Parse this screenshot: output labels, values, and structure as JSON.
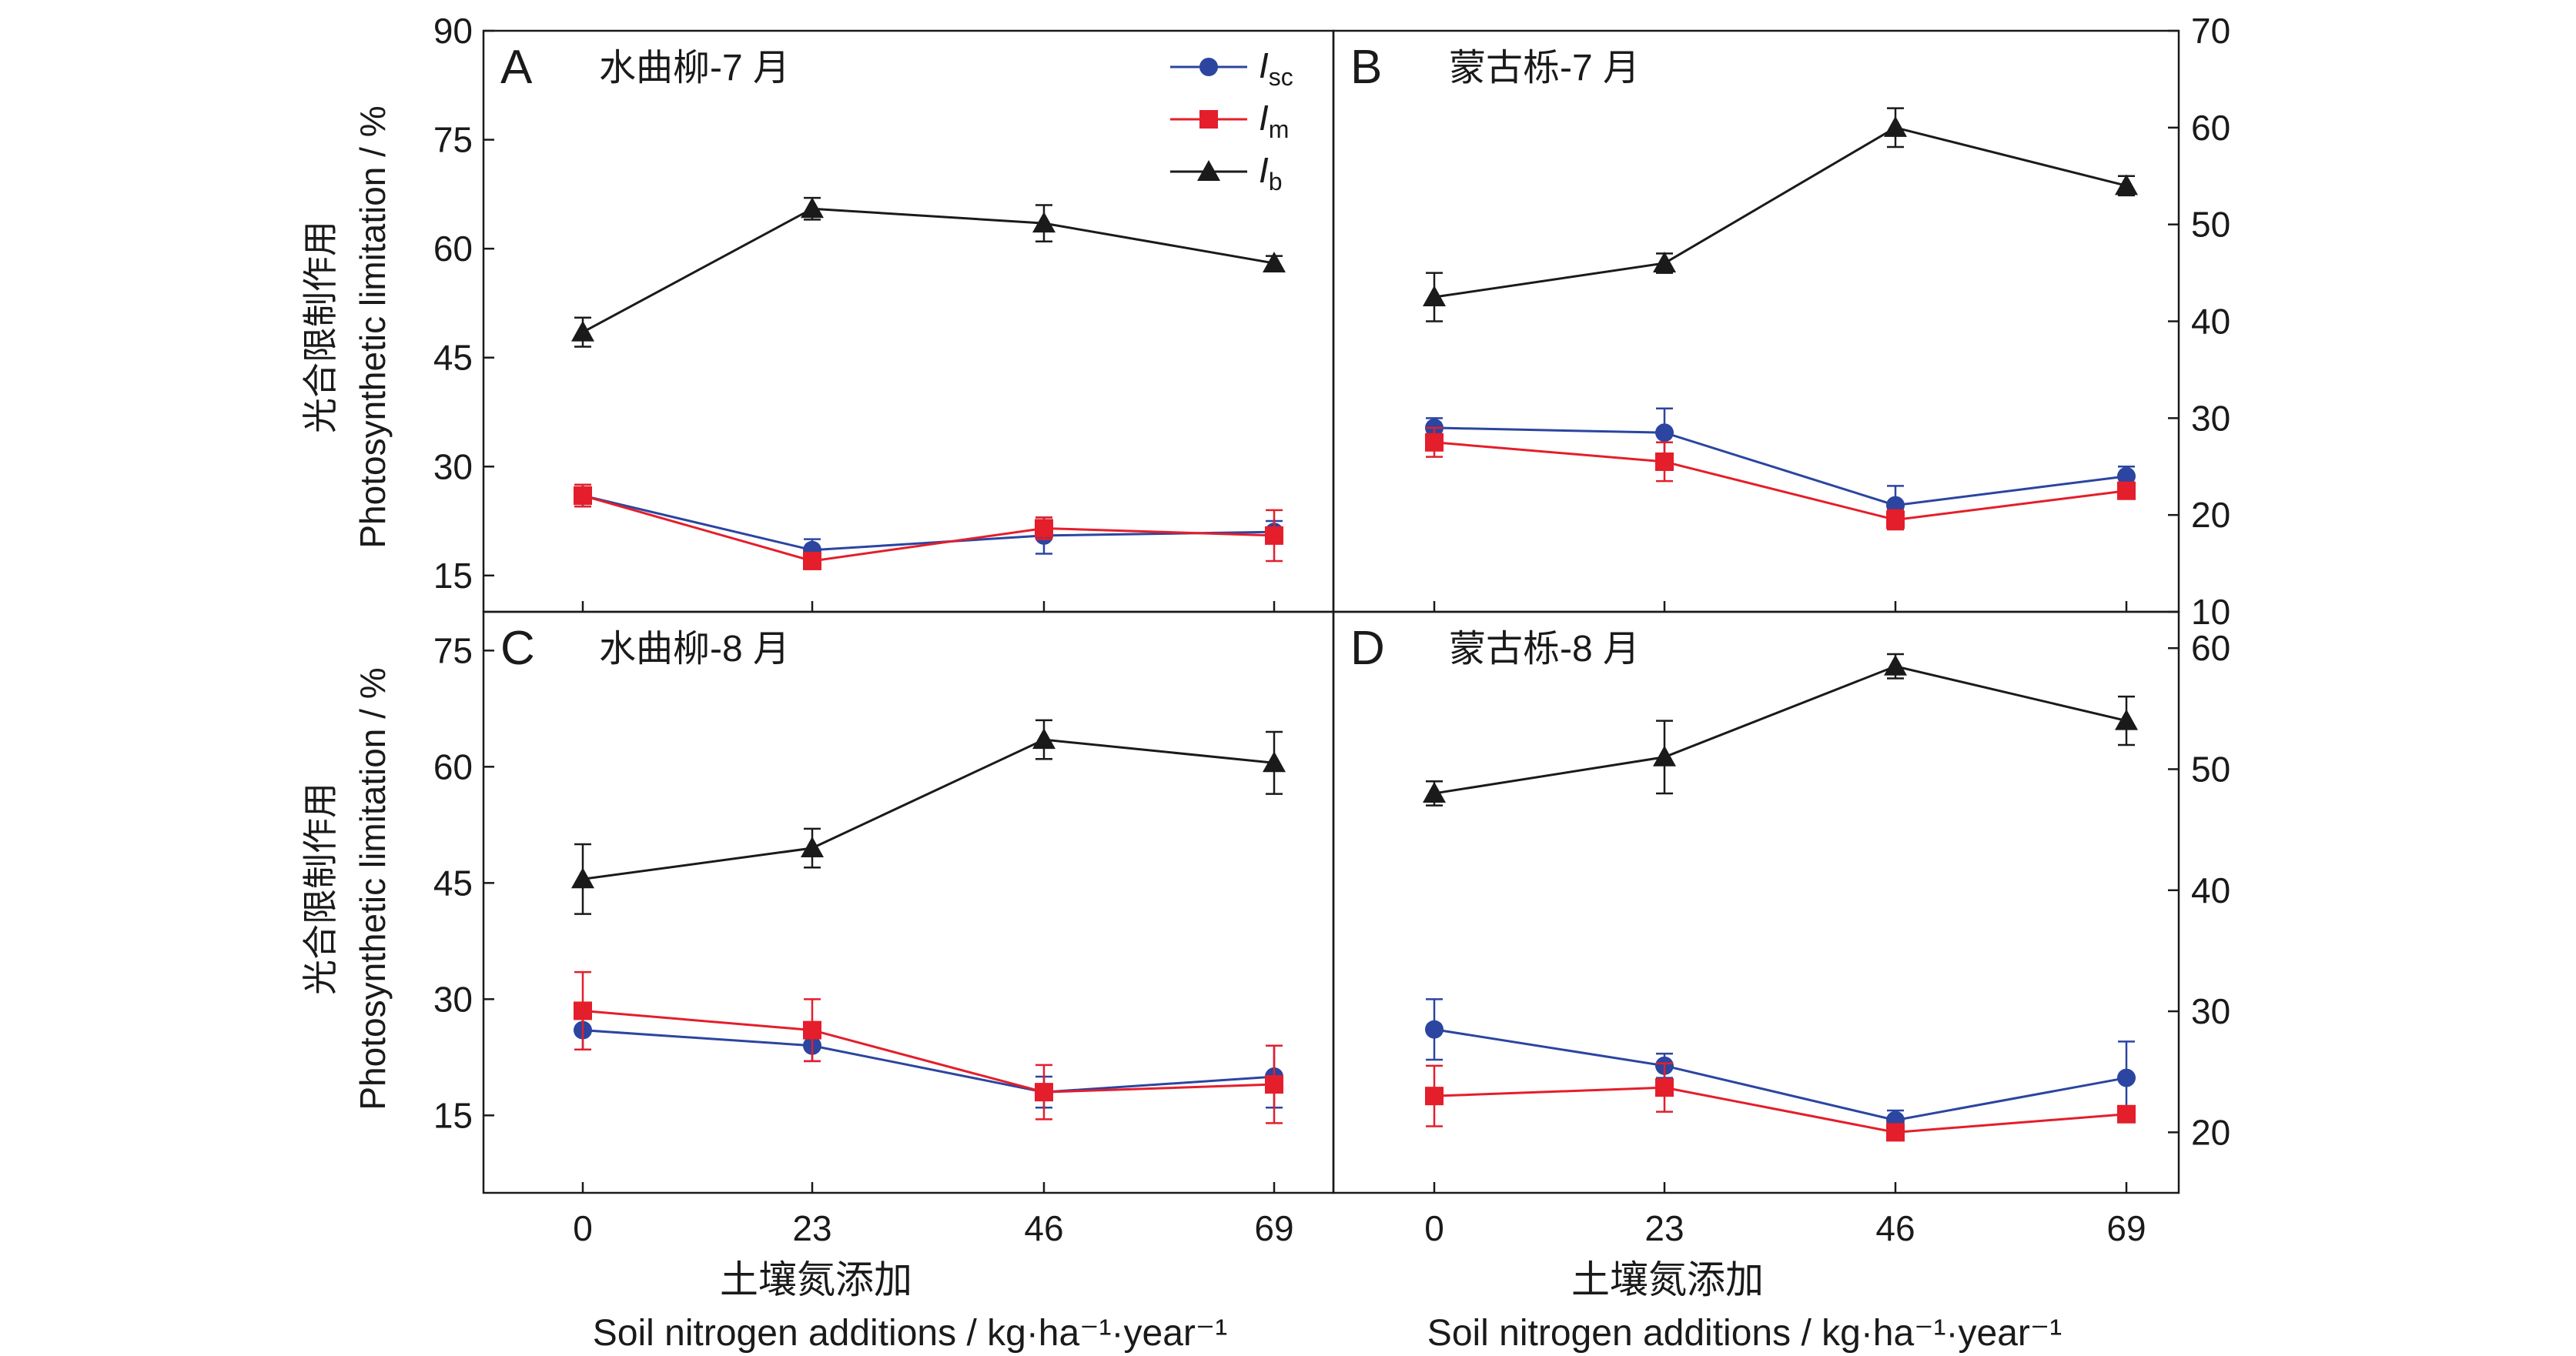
{
  "figure": {
    "ylabel_cn": "光合限制作用",
    "ylabel_en": "Photosynthetic limitation / %",
    "xlabel_cn": "土壤氮添加",
    "xlabel_en": "Soil nitrogen additions / kg·ha⁻¹·year⁻¹",
    "legend": [
      {
        "key": "isc",
        "main": "I",
        "sub": "sc",
        "color": "#2b45a0",
        "marker": "circle"
      },
      {
        "key": "im",
        "main": "I",
        "sub": "m",
        "color": "#e41e2b",
        "marker": "square"
      },
      {
        "key": "ib",
        "main": "I",
        "sub": "b",
        "color": "#1a1a1a",
        "marker": "triangle"
      }
    ],
    "colors": {
      "isc": "#2b45a0",
      "im": "#e41e2b",
      "ib": "#1a1a1a",
      "axis": "#1a1a1a"
    }
  },
  "chart_data": [
    {
      "panel": "A",
      "title": "水曲柳-7 月",
      "type": "line",
      "x": [
        0,
        23,
        46,
        69
      ],
      "xticks": [
        "0",
        "23",
        "46",
        "69"
      ],
      "ylim": [
        10,
        90
      ],
      "yticks": [
        15,
        30,
        45,
        60,
        75,
        90
      ],
      "yaxis_side": "left",
      "series": [
        {
          "key": "isc",
          "values": [
            26,
            18.5,
            20.5,
            21
          ],
          "err": [
            1.5,
            1.5,
            2.5,
            1.5
          ]
        },
        {
          "key": "im",
          "values": [
            26,
            17,
            21.5,
            20.5
          ],
          "err": [
            1.5,
            1,
            1.5,
            3.5
          ]
        },
        {
          "key": "ib",
          "values": [
            48.5,
            65.5,
            63.5,
            58
          ],
          "err": [
            2,
            1.5,
            2.5,
            1
          ]
        }
      ]
    },
    {
      "panel": "B",
      "title": "蒙古栎-7 月",
      "type": "line",
      "x": [
        0,
        23,
        46,
        69
      ],
      "xticks": [
        "0",
        "23",
        "46",
        "69"
      ],
      "ylim": [
        10,
        70
      ],
      "yticks": [
        10,
        20,
        30,
        40,
        50,
        60,
        70
      ],
      "yaxis_side": "right",
      "series": [
        {
          "key": "isc",
          "values": [
            29,
            28.5,
            21,
            24
          ],
          "err": [
            1,
            2.5,
            2,
            1
          ]
        },
        {
          "key": "im",
          "values": [
            27.5,
            25.5,
            19.5,
            22.5
          ],
          "err": [
            1.5,
            2,
            1,
            0.5
          ]
        },
        {
          "key": "ib",
          "values": [
            42.5,
            46,
            60,
            54
          ],
          "err": [
            2.5,
            1,
            2,
            1
          ]
        }
      ]
    },
    {
      "panel": "C",
      "title": "水曲柳-8 月",
      "type": "line",
      "x": [
        0,
        23,
        46,
        69
      ],
      "xticks": [
        "0",
        "23",
        "46",
        "69"
      ],
      "ylim": [
        5,
        80
      ],
      "yticks": [
        15,
        30,
        45,
        60,
        75
      ],
      "yaxis_side": "left",
      "series": [
        {
          "key": "isc",
          "values": [
            26,
            24,
            18,
            20
          ],
          "err": [
            2.5,
            2,
            2,
            4
          ]
        },
        {
          "key": "im",
          "values": [
            28.5,
            26,
            18,
            19
          ],
          "err": [
            5,
            4,
            3.5,
            5
          ]
        },
        {
          "key": "ib",
          "values": [
            45.5,
            49.5,
            63.5,
            60.5
          ],
          "err": [
            4.5,
            2.5,
            2.5,
            4
          ]
        }
      ]
    },
    {
      "panel": "D",
      "title": "蒙古栎-8 月",
      "type": "line",
      "x": [
        0,
        23,
        46,
        69
      ],
      "xticks": [
        "0",
        "23",
        "46",
        "69"
      ],
      "ylim": [
        15,
        63
      ],
      "yticks": [
        20,
        30,
        40,
        50,
        60
      ],
      "yaxis_side": "right",
      "series": [
        {
          "key": "isc",
          "values": [
            28.5,
            25.5,
            21,
            24.5
          ],
          "err": [
            2.5,
            1,
            0.8,
            3
          ]
        },
        {
          "key": "im",
          "values": [
            23,
            23.7,
            20,
            21.5
          ],
          "err": [
            2.5,
            2,
            0.5,
            0.5
          ]
        },
        {
          "key": "ib",
          "values": [
            48,
            51,
            58.5,
            54
          ],
          "err": [
            1,
            3,
            1,
            2
          ]
        }
      ]
    }
  ]
}
